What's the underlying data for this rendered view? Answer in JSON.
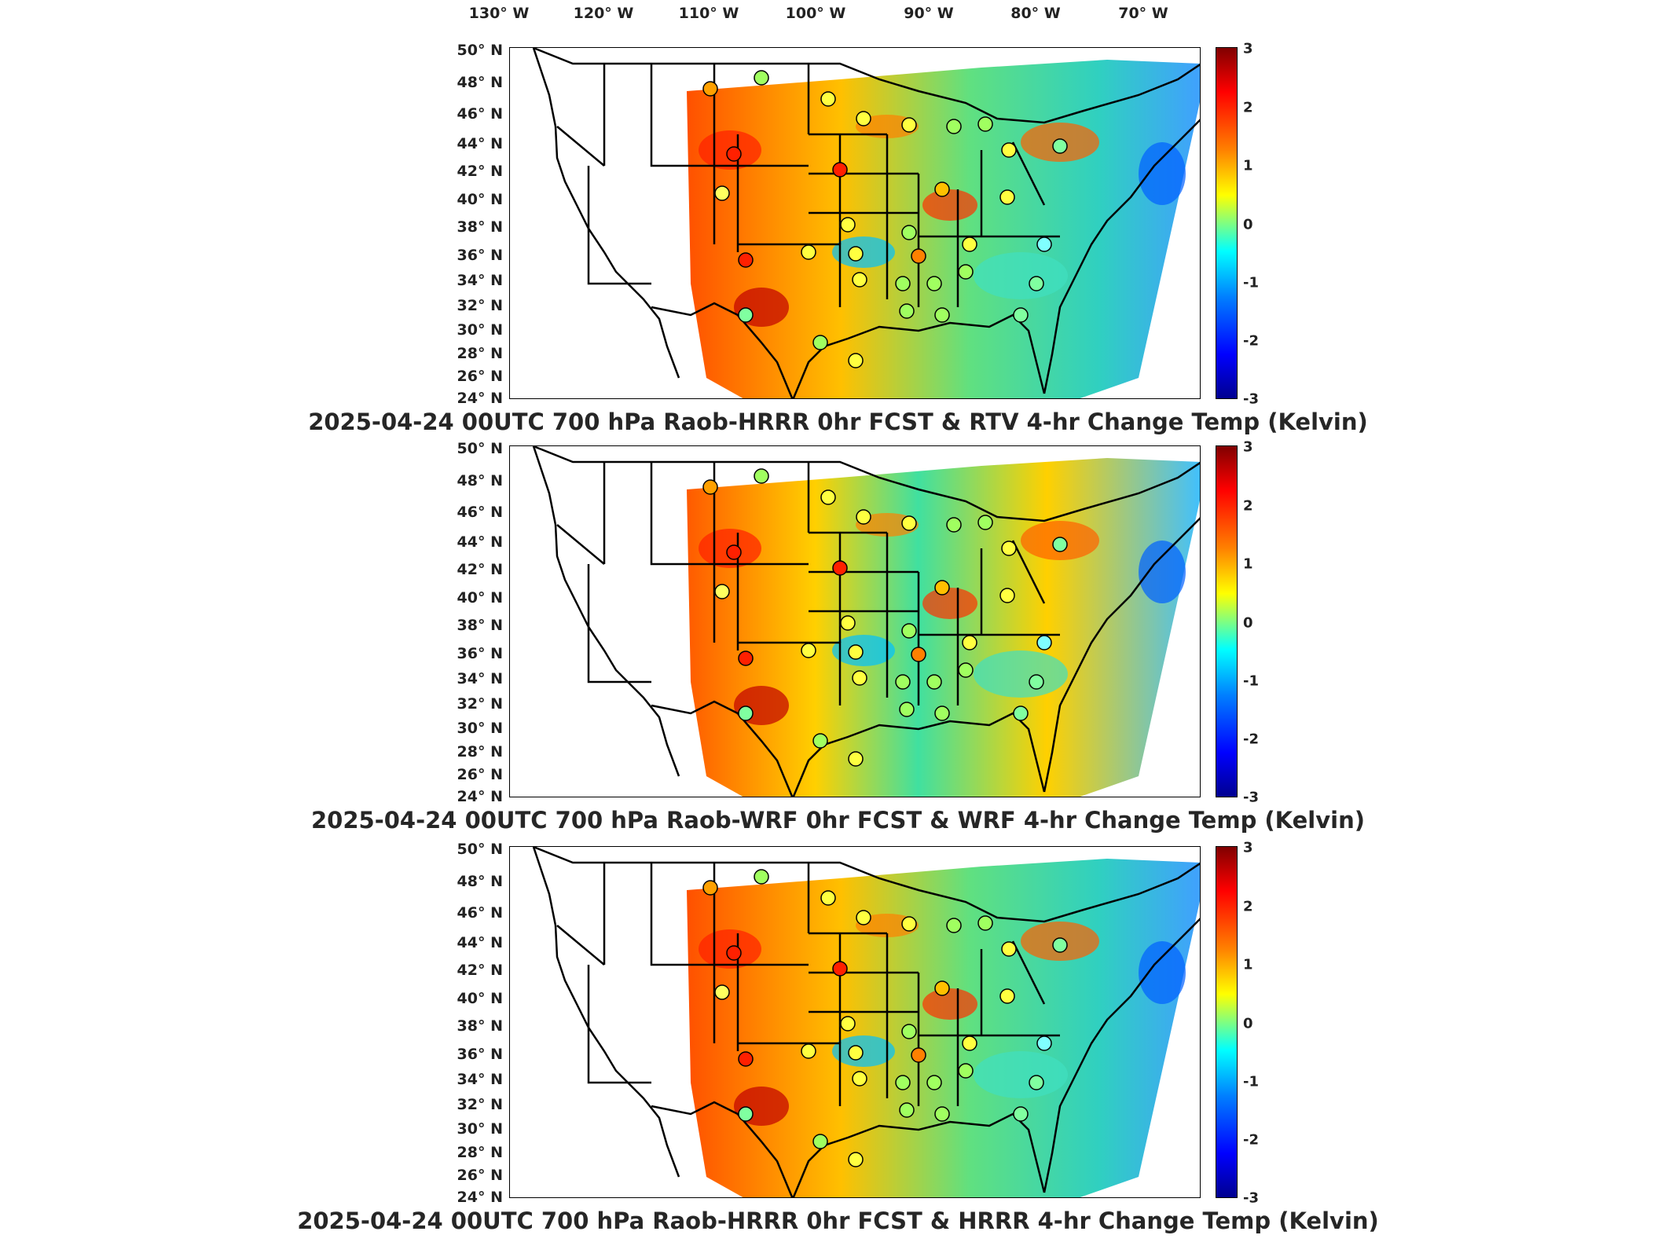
{
  "longitude_labels": [
    "130° W",
    "120° W",
    "110° W",
    "100° W",
    "90° W",
    "80° W",
    "70° W"
  ],
  "latitude_labels": [
    "50° N",
    "48° N",
    "46° N",
    "44° N",
    "42° N",
    "40° N",
    "38° N",
    "36° N",
    "34° N",
    "32° N",
    "30° N",
    "28° N",
    "26° N",
    "24° N"
  ],
  "colorbar_ticks": [
    "3",
    "2",
    "1",
    "0",
    "-1",
    "-2",
    "-3"
  ],
  "colorbar_range": [
    -3,
    3
  ],
  "colormap": "jet",
  "panels": [
    {
      "title": "2025-04-24 00UTC 700 hPa Raob-HRRR 0hr FCST & RTV 4-hr Change Temp (Kelvin)"
    },
    {
      "title": "2025-04-24 00UTC 700 hPa Raob-WRF 0hr FCST & WRF 4-hr Change Temp (Kelvin)"
    },
    {
      "title": "2025-04-24 00UTC 700 hPa Raob-HRRR 0hr FCST & HRRR 4-hr Change Temp (Kelvin)"
    }
  ],
  "colors": {
    "outline": "#000000",
    "background": "#ffffff"
  }
}
